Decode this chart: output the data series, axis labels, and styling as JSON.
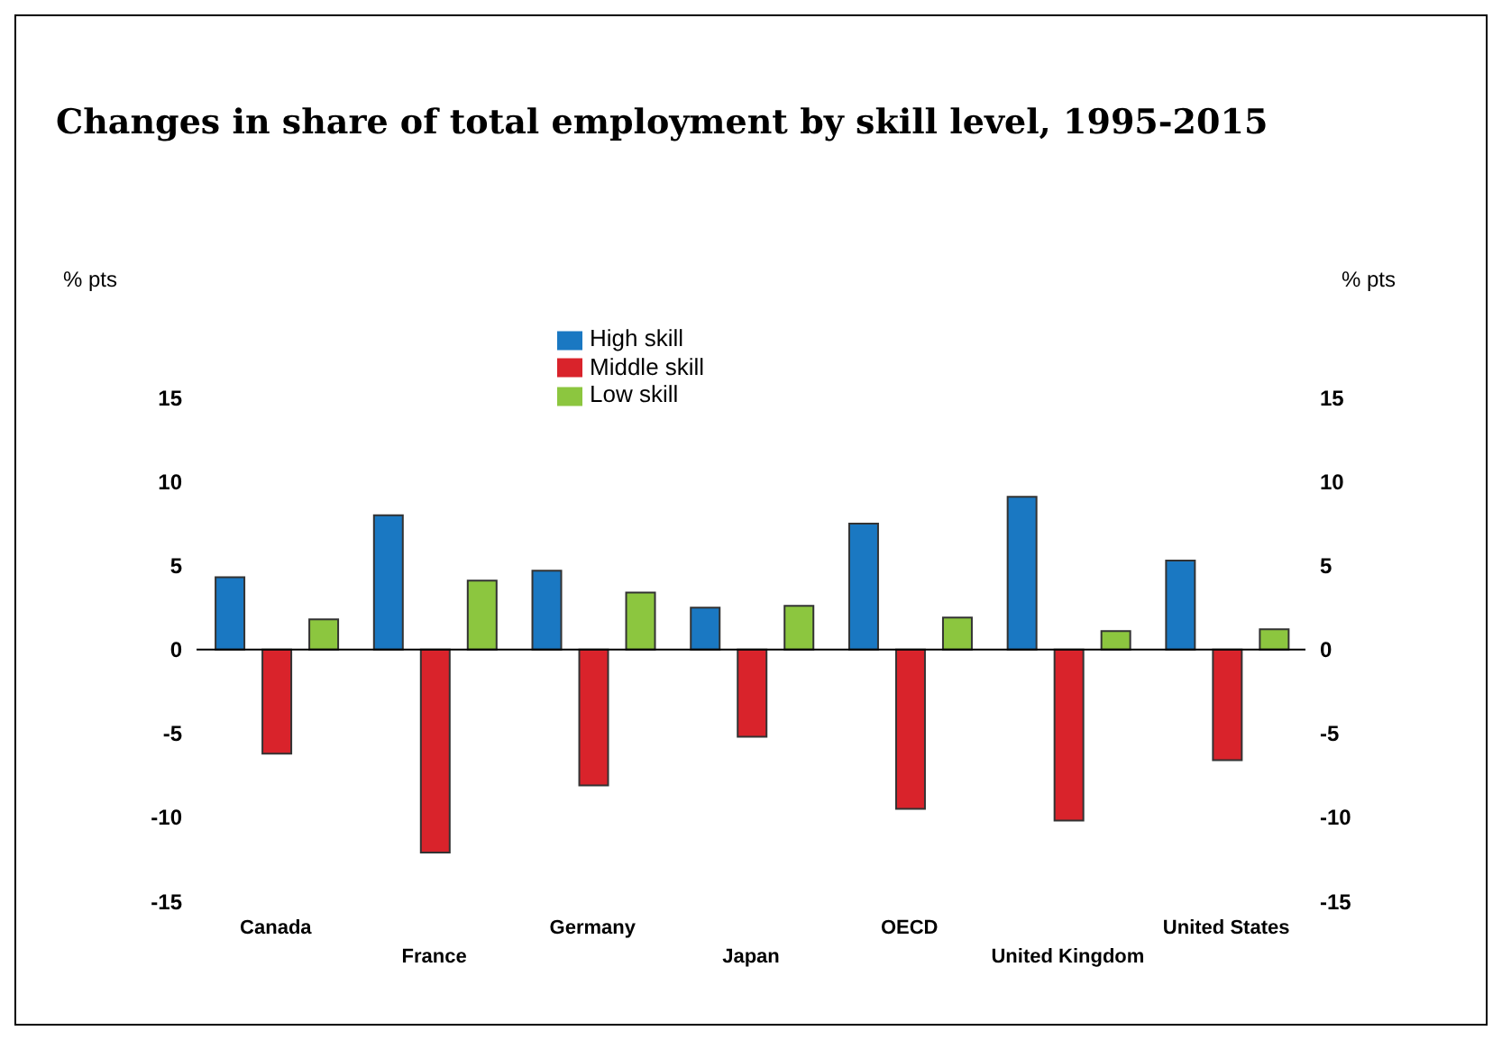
{
  "chart_data": {
    "type": "bar",
    "title": "Changes in share of total employment by skill level, 1995-2015",
    "ylabel": "% pts",
    "y2label": "% pts",
    "categories": [
      "Canada",
      "France",
      "Germany",
      "Japan",
      "OECD",
      "United Kingdom",
      "United States"
    ],
    "series": [
      {
        "name": "High skill",
        "color": "#1a78c2",
        "values": [
          4.3,
          8.0,
          4.7,
          2.5,
          7.5,
          9.1,
          5.3
        ]
      },
      {
        "name": "Middle skill",
        "color": "#d9232b",
        "values": [
          -6.2,
          -12.1,
          -8.1,
          -5.2,
          -9.5,
          -10.2,
          -6.6
        ]
      },
      {
        "name": "Low skill",
        "color": "#8cc63f",
        "values": [
          1.8,
          4.1,
          3.4,
          2.6,
          1.9,
          1.1,
          1.2
        ]
      }
    ],
    "ylim": [
      -15,
      15
    ],
    "yticks": [
      -15,
      -10,
      -5,
      0,
      5,
      10,
      15
    ],
    "y2lim": [
      -15,
      15
    ],
    "y2ticks": [
      -15,
      -10,
      -5,
      0,
      5,
      10,
      15
    ],
    "legend": "top"
  }
}
